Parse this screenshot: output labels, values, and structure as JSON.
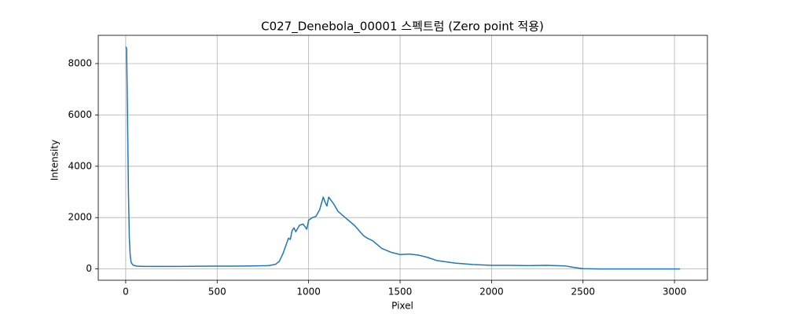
{
  "chart_data": {
    "type": "line",
    "title": "C027_Denebola_00001 스펙트럼 (Zero point 적용)",
    "x_label": "Pixel",
    "y_label": "Intensity",
    "x": [
      0,
      5,
      10,
      15,
      20,
      25,
      30,
      40,
      60,
      100,
      200,
      300,
      400,
      500,
      600,
      700,
      780,
      820,
      840,
      860,
      880,
      890,
      900,
      910,
      920,
      930,
      950,
      970,
      990,
      1000,
      1020,
      1040,
      1060,
      1080,
      1090,
      1100,
      1110,
      1120,
      1140,
      1160,
      1200,
      1250,
      1300,
      1320,
      1350,
      1400,
      1450,
      1500,
      1550,
      1600,
      1650,
      1700,
      1800,
      1900,
      2000,
      2100,
      2200,
      2300,
      2400,
      2450,
      2500,
      2600,
      3030
    ],
    "values": [
      8650,
      8600,
      6000,
      3000,
      1200,
      500,
      250,
      150,
      110,
      100,
      100,
      100,
      105,
      110,
      110,
      120,
      130,
      180,
      300,
      600,
      1000,
      1200,
      1150,
      1500,
      1600,
      1450,
      1700,
      1750,
      1550,
      1900,
      2000,
      2050,
      2300,
      2800,
      2600,
      2450,
      2800,
      2700,
      2500,
      2250,
      2000,
      1700,
      1300,
      1200,
      1100,
      800,
      650,
      560,
      580,
      540,
      450,
      330,
      230,
      170,
      140,
      140,
      130,
      140,
      120,
      60,
      10,
      0,
      0
    ],
    "color": "#1f77b4",
    "xlim": [
      -150,
      3180
    ],
    "ylim": [
      -440,
      9100
    ],
    "xticks": [
      0,
      500,
      1000,
      1500,
      2000,
      2500,
      3000
    ],
    "yticks": [
      0,
      2000,
      4000,
      6000,
      8000
    ],
    "grid": true
  }
}
